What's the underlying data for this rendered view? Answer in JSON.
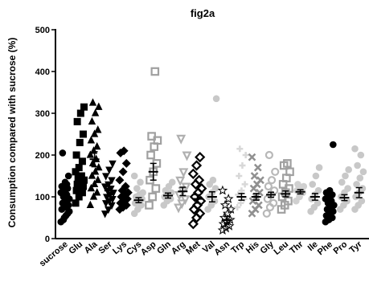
{
  "chart_data": {
    "type": "scatter",
    "title": "fig2a",
    "xlabel": "",
    "ylabel": "Consumption  compared with sucrose (%)",
    "ylim": [
      0,
      500
    ],
    "yticks": [
      0,
      100,
      200,
      300,
      400,
      500
    ],
    "ytick_labels": [
      "0",
      "100",
      "200",
      "300",
      "400",
      "500"
    ],
    "grid": false,
    "legend": "none",
    "categories": [
      "sucrose",
      "Glu",
      "Ala",
      "Ser",
      "Lys",
      "Cys",
      "Asp",
      "Gln",
      "Arg",
      "Met",
      "Val",
      "Asn",
      "Trp",
      "His",
      "Gly",
      "Leu",
      "Thr",
      "Ile",
      "Phe",
      "Pro",
      "Tyr"
    ],
    "series": [
      {
        "category": "sucrose",
        "mean": 100,
        "sem": 10,
        "marker": "circle",
        "color": "#000000",
        "points": [
          40,
          50,
          60,
          70,
          75,
          80,
          85,
          90,
          95,
          100,
          105,
          110,
          115,
          120,
          125,
          135,
          150,
          205,
          55,
          65,
          45,
          130
        ]
      },
      {
        "category": "Glu",
        "mean": 140,
        "sem": 12,
        "marker": "square",
        "color": "#000000",
        "points": [
          85,
          100,
          110,
          115,
          120,
          125,
          130,
          135,
          140,
          145,
          150,
          160,
          170,
          185,
          200,
          230,
          250,
          280,
          300,
          315
        ]
      },
      {
        "category": "Ala",
        "mean": 190,
        "sem": 18,
        "marker": "triangle",
        "color": "#000000",
        "points": [
          80,
          100,
          110,
          120,
          130,
          140,
          150,
          160,
          170,
          180,
          190,
          200,
          210,
          220,
          235,
          250,
          260,
          280,
          300,
          315,
          325
        ]
      },
      {
        "category": "Ser",
        "mean": 115,
        "sem": 10,
        "marker": "triangle-down",
        "color": "#000000",
        "points": [
          60,
          70,
          80,
          85,
          90,
          95,
          100,
          105,
          110,
          115,
          120,
          125,
          130,
          140,
          150,
          165,
          180
        ]
      },
      {
        "category": "Lys",
        "mean": 100,
        "sem": 10,
        "marker": "diamond",
        "color": "#000000",
        "points": [
          70,
          75,
          80,
          85,
          90,
          95,
          100,
          105,
          110,
          115,
          125,
          140,
          160,
          180,
          205,
          210
        ]
      },
      {
        "category": "Cys",
        "mean": 92,
        "sem": 6,
        "marker": "circle",
        "color": "#c8c8c8",
        "points": [
          60,
          70,
          80,
          85,
          90,
          95,
          100,
          105,
          110,
          120,
          135,
          150
        ]
      },
      {
        "category": "Asp",
        "mean": 160,
        "sem": 20,
        "marker": "square-open",
        "color": "#a0a0a0",
        "points": [
          80,
          100,
          120,
          140,
          160,
          180,
          200,
          220,
          235,
          245,
          400
        ]
      },
      {
        "category": "Gln",
        "mean": 103,
        "sem": 6,
        "marker": "circle",
        "color": "#c8c8c8",
        "points": [
          80,
          90,
          95,
          100,
          105,
          110,
          115,
          125,
          135
        ]
      },
      {
        "category": "Arg",
        "mean": 113,
        "sem": 10,
        "marker": "triangle-down-open",
        "color": "#b0b0b0",
        "points": [
          75,
          85,
          95,
          105,
          115,
          125,
          140,
          160,
          200,
          240
        ]
      },
      {
        "category": "Met",
        "mean": 95,
        "sem": 10,
        "marker": "diamond-open",
        "color": "#000000",
        "points": [
          35,
          50,
          60,
          70,
          80,
          90,
          100,
          110,
          120,
          130,
          140,
          155,
          175,
          195
        ]
      },
      {
        "category": "Val",
        "mean": 100,
        "sem": 12,
        "marker": "circle",
        "color": "#c8c8c8",
        "points": [
          70,
          80,
          90,
          100,
          110,
          120,
          130,
          140,
          335
        ]
      },
      {
        "category": "Asn",
        "mean": 45,
        "sem": 8,
        "marker": "star",
        "color": "#000000",
        "points": [
          20,
          25,
          30,
          35,
          40,
          45,
          50,
          60,
          70,
          80,
          95,
          115
        ]
      },
      {
        "category": "Trp",
        "mean": 100,
        "sem": 8,
        "marker": "plus",
        "color": "#d8d8d8",
        "points": [
          75,
          85,
          95,
          105,
          115,
          130,
          150,
          175,
          200,
          215
        ]
      },
      {
        "category": "His",
        "mean": 100,
        "sem": 8,
        "marker": "cross",
        "color": "#909090",
        "points": [
          60,
          70,
          80,
          90,
          100,
          110,
          120,
          130,
          140,
          150,
          170,
          195
        ]
      },
      {
        "category": "Gly",
        "mean": 105,
        "sem": 6,
        "marker": "circle-open",
        "color": "#b8b8b8",
        "points": [
          60,
          75,
          85,
          95,
          105,
          115,
          125,
          140,
          160,
          200
        ]
      },
      {
        "category": "Leu",
        "mean": 107,
        "sem": 7,
        "marker": "square-open",
        "color": "#a0a0a0",
        "points": [
          70,
          80,
          90,
          100,
          110,
          120,
          130,
          145,
          160,
          175,
          180
        ]
      },
      {
        "category": "Thr",
        "mean": 112,
        "sem": 5,
        "marker": "circle",
        "color": "#d0d0d0",
        "points": [
          90,
          100,
          110,
          115,
          120,
          125,
          130
        ]
      },
      {
        "category": "Ile",
        "mean": 100,
        "sem": 8,
        "marker": "circle",
        "color": "#c8c8c8",
        "points": [
          65,
          75,
          85,
          95,
          105,
          115,
          130,
          150,
          170
        ]
      },
      {
        "category": "Phe",
        "mean": 75,
        "sem": 8,
        "marker": "circle",
        "color": "#000000",
        "points": [
          40,
          45,
          50,
          55,
          60,
          65,
          70,
          75,
          80,
          85,
          90,
          95,
          100,
          105,
          110,
          115,
          225
        ]
      },
      {
        "category": "Pro",
        "mean": 98,
        "sem": 7,
        "marker": "circle",
        "color": "#c8c8c8",
        "points": [
          70,
          80,
          90,
          100,
          110,
          120,
          135,
          150,
          165
        ]
      },
      {
        "category": "Tyr",
        "mean": 110,
        "sem": 12,
        "marker": "circle",
        "color": "#c8c8c8",
        "points": [
          70,
          80,
          90,
          100,
          110,
          120,
          130,
          145,
          160,
          175,
          200,
          215
        ]
      }
    ]
  }
}
